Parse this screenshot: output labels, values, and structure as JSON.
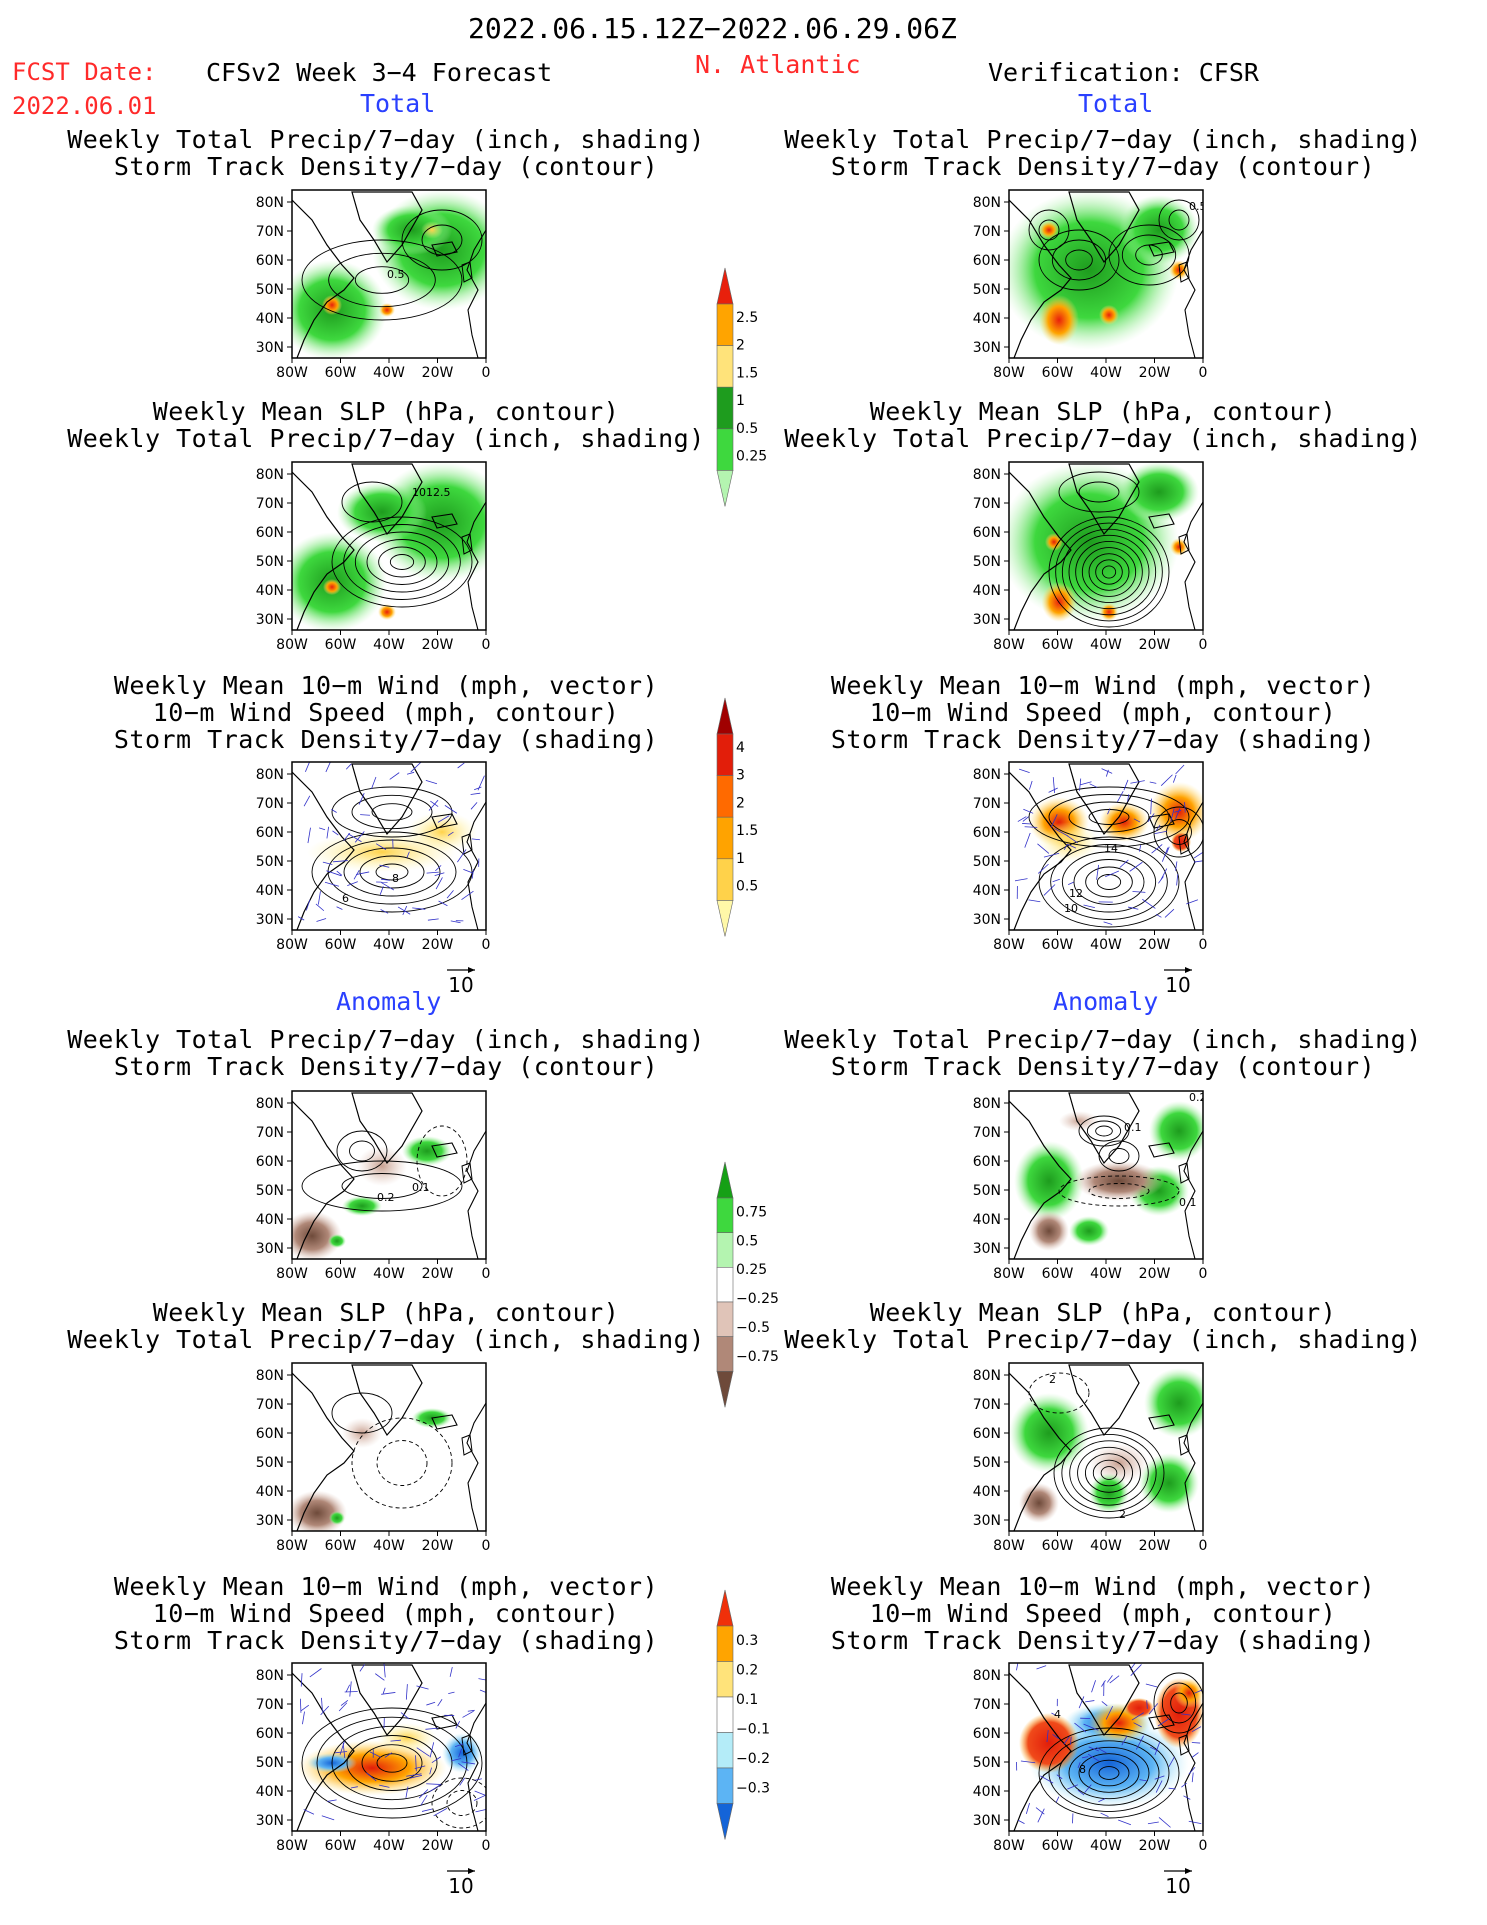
{
  "header": {
    "date_range": "2022.06.15.12Z−2022.06.29.06Z",
    "fcst_label": "FCST Date:",
    "fcst_date": "2022.06.01",
    "model": "CFSv2 Week 3−4 Forecast",
    "region": "N. Atlantic",
    "verification": "Verification: CFSR"
  },
  "sections": {
    "total": "Total",
    "anomaly": "Anomaly"
  },
  "panel_titles": {
    "precip_storm": [
      "Weekly Total Precip/7−day (inch, shading)",
      "Storm Track Density/7−day (contour)"
    ],
    "slp_precip": [
      "Weekly Mean SLP (hPa, contour)",
      "Weekly Total Precip/7−day (inch, shading)"
    ],
    "wind_storm": [
      "Weekly Mean 10−m Wind (mph, vector)",
      "10−m Wind Speed (mph, contour)",
      "Storm Track Density/7−day (shading)"
    ]
  },
  "axes": {
    "lat_ticks": [
      "80N",
      "70N",
      "60N",
      "50N",
      "40N",
      "30N"
    ],
    "lon_ticks": [
      "80W",
      "60W",
      "40W",
      "20W",
      "0"
    ]
  },
  "vector_ref": "10",
  "colorbars": [
    {
      "id": "total-precip",
      "labels": [
        "2.5",
        "2",
        "1.5",
        "1",
        "0.5",
        "0.25"
      ],
      "colors": [
        "#e8200c",
        "#ffa400",
        "#ffe37a",
        "#1e9c1e",
        "#3ed83e",
        "#b4f4b0"
      ]
    },
    {
      "id": "total-storm",
      "labels": [
        "4",
        "3",
        "2",
        "1.5",
        "1",
        "0.5"
      ],
      "colors": [
        "#a00000",
        "#e21e0a",
        "#ff6a00",
        "#ffa300",
        "#ffd24a",
        "#fff8a8"
      ]
    },
    {
      "id": "anom-precip",
      "labels": [
        "0.75",
        "0.5",
        "0.25",
        "−0.25",
        "−0.5",
        "−0.75"
      ],
      "colors": [
        "#16a016",
        "#3ed83e",
        "#b4f4b0",
        "#ffffff",
        "#e0c4b8",
        "#b08878",
        "#6e4a3a"
      ]
    },
    {
      "id": "anom-storm",
      "labels": [
        "0.3",
        "0.2",
        "0.1",
        "−0.1",
        "−0.2",
        "−0.3"
      ],
      "colors": [
        "#f0300a",
        "#ffa400",
        "#ffe37a",
        "#ffffff",
        "#b4ecf8",
        "#5cb4f4",
        "#1464d8"
      ]
    }
  ],
  "map_labels": {
    "L-r1": "0.5",
    "L-r2": "1012.5",
    "L-r3a": "6",
    "L-r3b": "8",
    "R-r1": "0.5",
    "R-r3a": "14",
    "R-r3b": "12",
    "R-r3c": "10",
    "L-r4a": "0.2",
    "L-r4b": "0.1",
    "R-r4a": "0.2",
    "R-r4b": "0.1",
    "R-r4c": "0.1",
    "R-r5a": "2",
    "R-r5b": "2",
    "R-r6a": "4",
    "R-r6b": "8"
  }
}
